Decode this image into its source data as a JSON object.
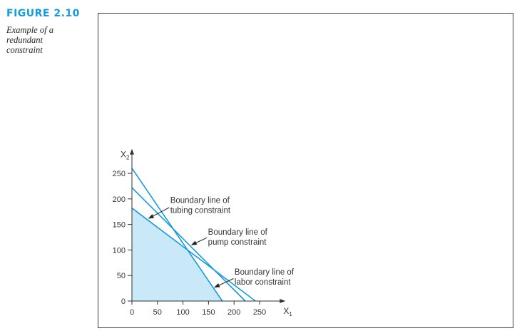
{
  "figure": {
    "label": "FIGURE 2.10",
    "caption_lines": [
      "Example of a",
      "redundant",
      "constraint"
    ]
  },
  "chart_data": {
    "type": "line",
    "xlabel": "X",
    "xlabel_sub": "1",
    "ylabel": "X",
    "ylabel_sub": "2",
    "xlim": [
      0,
      270
    ],
    "ylim": [
      0,
      270
    ],
    "xticks": [
      0,
      50,
      100,
      150,
      200,
      250
    ],
    "yticks": [
      0,
      50,
      100,
      150,
      200,
      250
    ],
    "grid": false,
    "colors": {
      "line": "#1a9ad6",
      "feasible_fill": "#c9e8f8",
      "axis": "#333333",
      "arrow": "#222222"
    },
    "series": [
      {
        "x": [
          0,
          177
        ],
        "y": [
          260,
          0
        ]
      },
      {
        "x": [
          0,
          222
        ],
        "y": [
          222,
          0
        ]
      },
      {
        "x": [
          0,
          242
        ],
        "y": [
          182,
          0
        ]
      }
    ],
    "feasible_region": [
      [
        0,
        0
      ],
      [
        0,
        182
      ],
      [
        110,
        99
      ],
      [
        177,
        0
      ]
    ],
    "annotations": [
      {
        "lines": [
          "Boundary line of",
          "tubing constraint"
        ],
        "text_at": [
          75,
          192
        ],
        "arrow_from": [
          73,
          183
        ],
        "arrow_to": [
          33,
          162
        ]
      },
      {
        "lines": [
          "Boundary line of",
          "pump constraint"
        ],
        "text_at": [
          149,
          130
        ],
        "arrow_from": [
          147,
          124
        ],
        "arrow_to": [
          117,
          110
        ]
      },
      {
        "lines": [
          "Boundary line of",
          "labor constraint"
        ],
        "text_at": [
          201,
          52
        ],
        "arrow_from": [
          199,
          44
        ],
        "arrow_to": [
          162,
          27
        ]
      }
    ]
  }
}
